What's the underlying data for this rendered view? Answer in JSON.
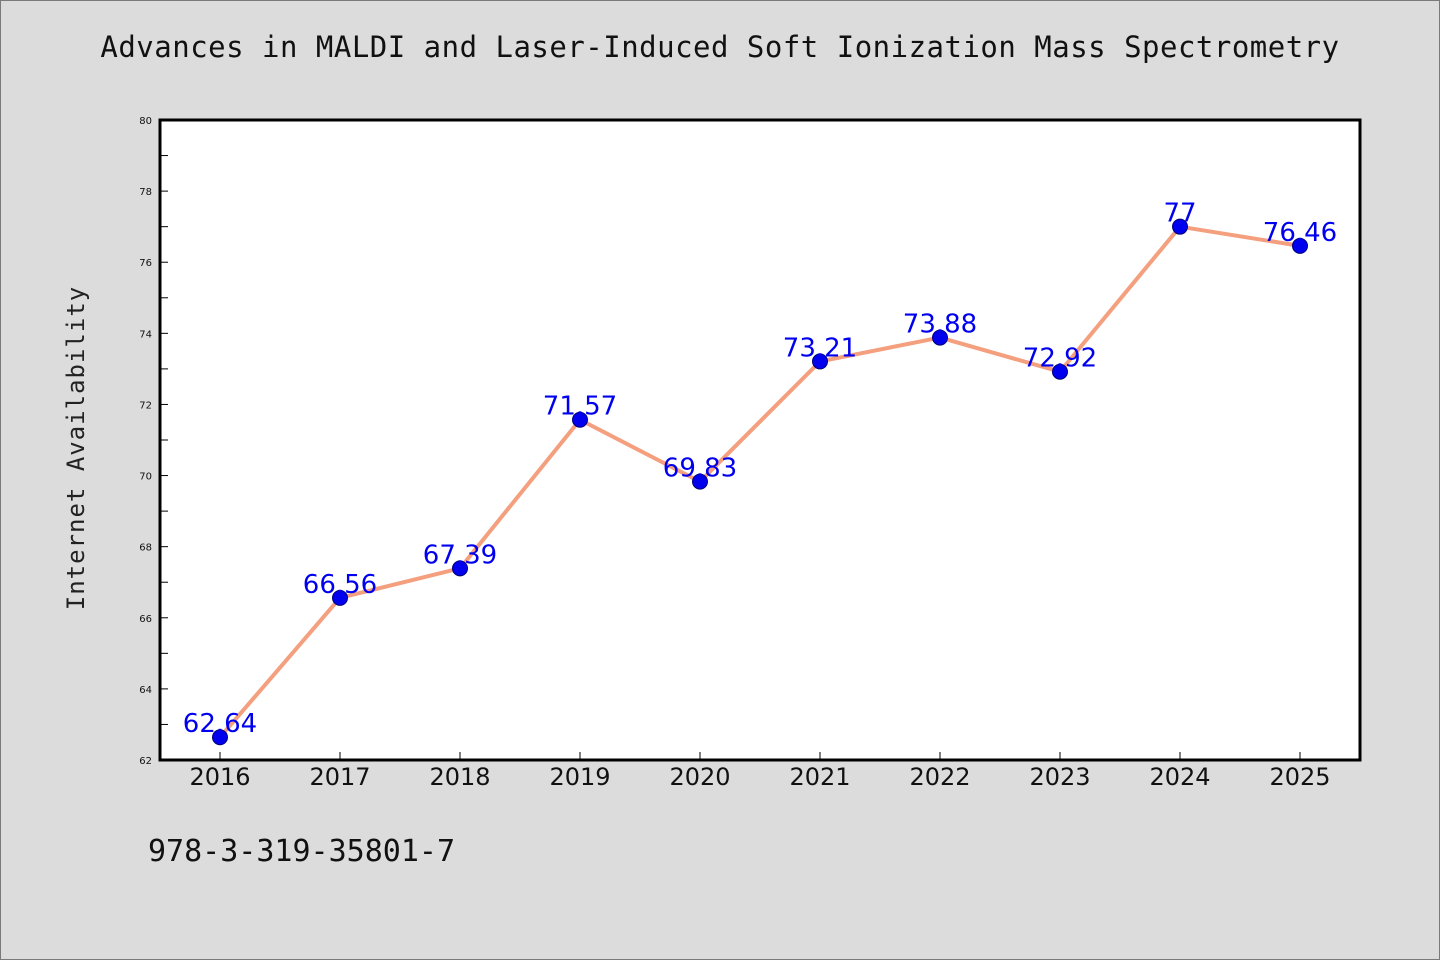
{
  "title": "Advances in MALDI and Laser-Induced Soft Ionization Mass Spectrometry",
  "isbn": "978-3-319-35801-7",
  "chart_data": {
    "type": "line",
    "title": "Advances in MALDI and Laser-Induced Soft Ionization Mass Spectrometry",
    "xlabel": "",
    "ylabel": "Internet Availability",
    "categories": [
      "2016",
      "2017",
      "2018",
      "2019",
      "2020",
      "2021",
      "2022",
      "2023",
      "2024",
      "2025"
    ],
    "values": [
      62.64,
      66.56,
      67.39,
      71.57,
      69.83,
      73.21,
      73.88,
      72.92,
      77,
      76.46
    ],
    "data_labels": [
      "62.64",
      "66.56",
      "67.39",
      "71.57",
      "69.83",
      "73.21",
      "73.88",
      "72.92",
      "77",
      "76.46"
    ],
    "ylim": [
      62,
      80
    ],
    "yticks": [
      "62",
      "64",
      "66",
      "68",
      "70",
      "72",
      "74",
      "76",
      "78",
      "80"
    ],
    "grid": false,
    "legend": "none",
    "colors": {
      "line": "#f4a07f",
      "marker": "#0000ee",
      "marker_edge": "#00007a",
      "data_label": "#0000ee",
      "plot_background": "#ffffff",
      "figure_background": "#dcdcdc"
    }
  }
}
